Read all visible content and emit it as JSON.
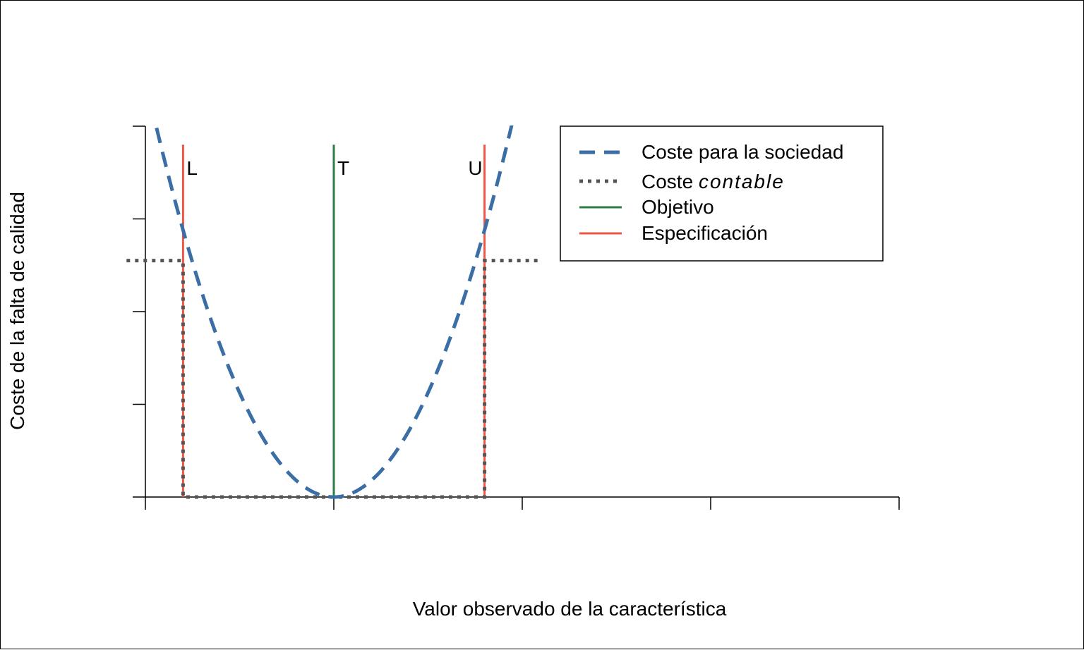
{
  "chart_data": {
    "type": "line",
    "title": "",
    "xlabel": "Valor observado de la característica",
    "ylabel": "Coste de la falta de calidad",
    "xlim": [
      0,
      4
    ],
    "ylim": [
      0,
      4
    ],
    "x_ticks": [
      0,
      1,
      2,
      3,
      4
    ],
    "y_ticks": [
      0,
      1,
      2,
      3,
      4
    ],
    "show_tick_labels": false,
    "grid": false,
    "legend_position": "top-right",
    "target": 1,
    "lower_spec": 0.2,
    "upper_spec": 1.8,
    "vertical_line_top": 3.8,
    "series": [
      {
        "name": "Coste para la sociedad",
        "style": "dashed",
        "color": "#3a6ea5",
        "function": "quadratic",
        "k": 4.5,
        "center": 1,
        "x": [
          0,
          0.1,
          0.2,
          0.3,
          0.4,
          0.5,
          0.6,
          0.7,
          0.8,
          0.9,
          1.0,
          1.1,
          1.2,
          1.3,
          1.4,
          1.5,
          1.6,
          1.7,
          1.8,
          1.9,
          2.0
        ],
        "y": [
          4.5,
          3.645,
          2.88,
          2.205,
          1.62,
          1.125,
          0.72,
          0.405,
          0.18,
          0.045,
          0,
          0.045,
          0.18,
          0.405,
          0.72,
          1.125,
          1.62,
          2.205,
          2.88,
          3.645,
          4.5
        ]
      },
      {
        "name_prefix": "Coste ",
        "name_italic": "contable",
        "style": "dotted",
        "color": "#555555",
        "x": [
          -0.1,
          0.2,
          0.2,
          1.8,
          1.8,
          2.1
        ],
        "y": [
          2.55,
          2.55,
          0,
          0,
          2.55,
          2.55
        ]
      },
      {
        "name": "Objetivo",
        "style": "solid",
        "color": "#2e7d46"
      },
      {
        "name": "Especificación",
        "style": "solid",
        "color": "#f05545"
      }
    ],
    "annotations": [
      {
        "text": "L",
        "x": 0.2,
        "y": 3.55
      },
      {
        "text": "T",
        "x": 1.0,
        "y": 3.55
      },
      {
        "text": "U",
        "x": 1.8,
        "y": 3.55
      }
    ]
  }
}
